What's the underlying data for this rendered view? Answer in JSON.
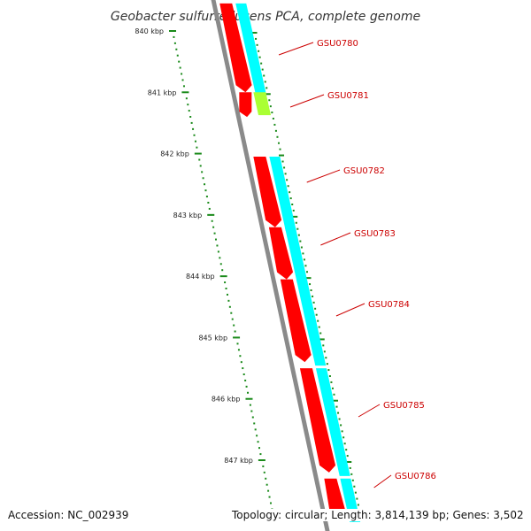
{
  "title": "Geobacter sulfurreducens PCA, complete genome",
  "colors": {
    "backbone": "#8a8a8a",
    "forward_cds": "#ff0000",
    "reverse_cds": "#00ffff",
    "rna": "#aaff33",
    "ticks": "#1a8a1a",
    "labels": "#cc0000"
  },
  "scale": {
    "unit": "kbp",
    "labels": [
      {
        "kbp": 840,
        "text": "840 kbp"
      },
      {
        "kbp": 841,
        "text": "841 kbp"
      },
      {
        "kbp": 842,
        "text": "842 kbp"
      },
      {
        "kbp": 843,
        "text": "843 kbp"
      },
      {
        "kbp": 844,
        "text": "844 kbp"
      },
      {
        "kbp": 845,
        "text": "845 kbp"
      },
      {
        "kbp": 846,
        "text": "846 kbp"
      },
      {
        "kbp": 847,
        "text": "847 kbp"
      }
    ]
  },
  "features": [
    {
      "name": "GSU0780",
      "strand": "both",
      "start_kbp": 839.55,
      "end_kbp": 841.0,
      "type": "CDS"
    },
    {
      "name": "GSU0781",
      "strand": "both",
      "start_kbp": 841.0,
      "end_kbp": 841.2,
      "type": "RNA"
    },
    {
      "name": "GSU0782",
      "strand": "both",
      "start_kbp": 842.05,
      "end_kbp": 843.2,
      "type": "CDS"
    },
    {
      "name": "GSU0783",
      "strand": "both",
      "start_kbp": 843.2,
      "end_kbp": 844.05,
      "type": "CDS"
    },
    {
      "name": "GSU0784",
      "strand": "both",
      "start_kbp": 844.05,
      "end_kbp": 845.4,
      "type": "CDS"
    },
    {
      "name": "GSU0785",
      "strand": "both",
      "start_kbp": 845.5,
      "end_kbp": 847.2,
      "type": "CDS"
    },
    {
      "name": "GSU0786",
      "strand": "both",
      "start_kbp": 847.3,
      "end_kbp": 847.95,
      "type": "CDS"
    }
  ],
  "footer": {
    "accession": "Accession: NC_002939",
    "summary": "Topology: circular; Length: 3,814,139 bp; Genes: 3,502"
  }
}
